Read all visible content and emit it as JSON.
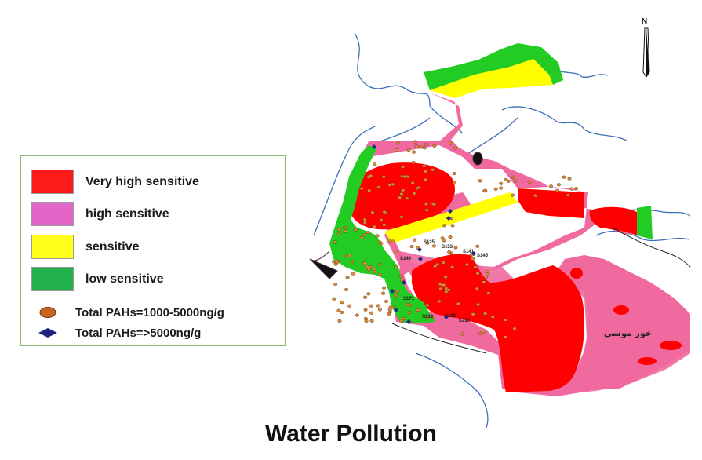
{
  "title": "Water Pollution",
  "legend": {
    "zones": [
      {
        "label": "Very high sensitive",
        "color": "#ff1a1a"
      },
      {
        "label": "high sensitive",
        "color": "#e266c8"
      },
      {
        "label": "sensitive",
        "color": "#ffff1a"
      },
      {
        "label": "low sensitive",
        "color": "#22b24c"
      }
    ],
    "markers": [
      {
        "label": "Total PAHs=1000-5000ng/g",
        "color": "#c8641e",
        "shape": "ellipse"
      },
      {
        "label": "Total PAHs=>5000ng/g",
        "color": "#1a237e",
        "shape": "diamond"
      }
    ]
  },
  "north": {
    "letter": "N"
  },
  "stations": [
    "S125",
    "S145",
    "S149",
    "S153",
    "S192",
    "S171",
    "S138",
    "S193",
    "S141"
  ],
  "place_labels": [
    "خور موسی"
  ],
  "colors": {
    "very_high": "#ff0000",
    "high": "#f06aa0",
    "sensitive": "#ffff00",
    "low": "#22cc22",
    "river": "#3a6fb5",
    "sample_fill": "#d98b3a",
    "sample_high": "#1a2a8c"
  }
}
